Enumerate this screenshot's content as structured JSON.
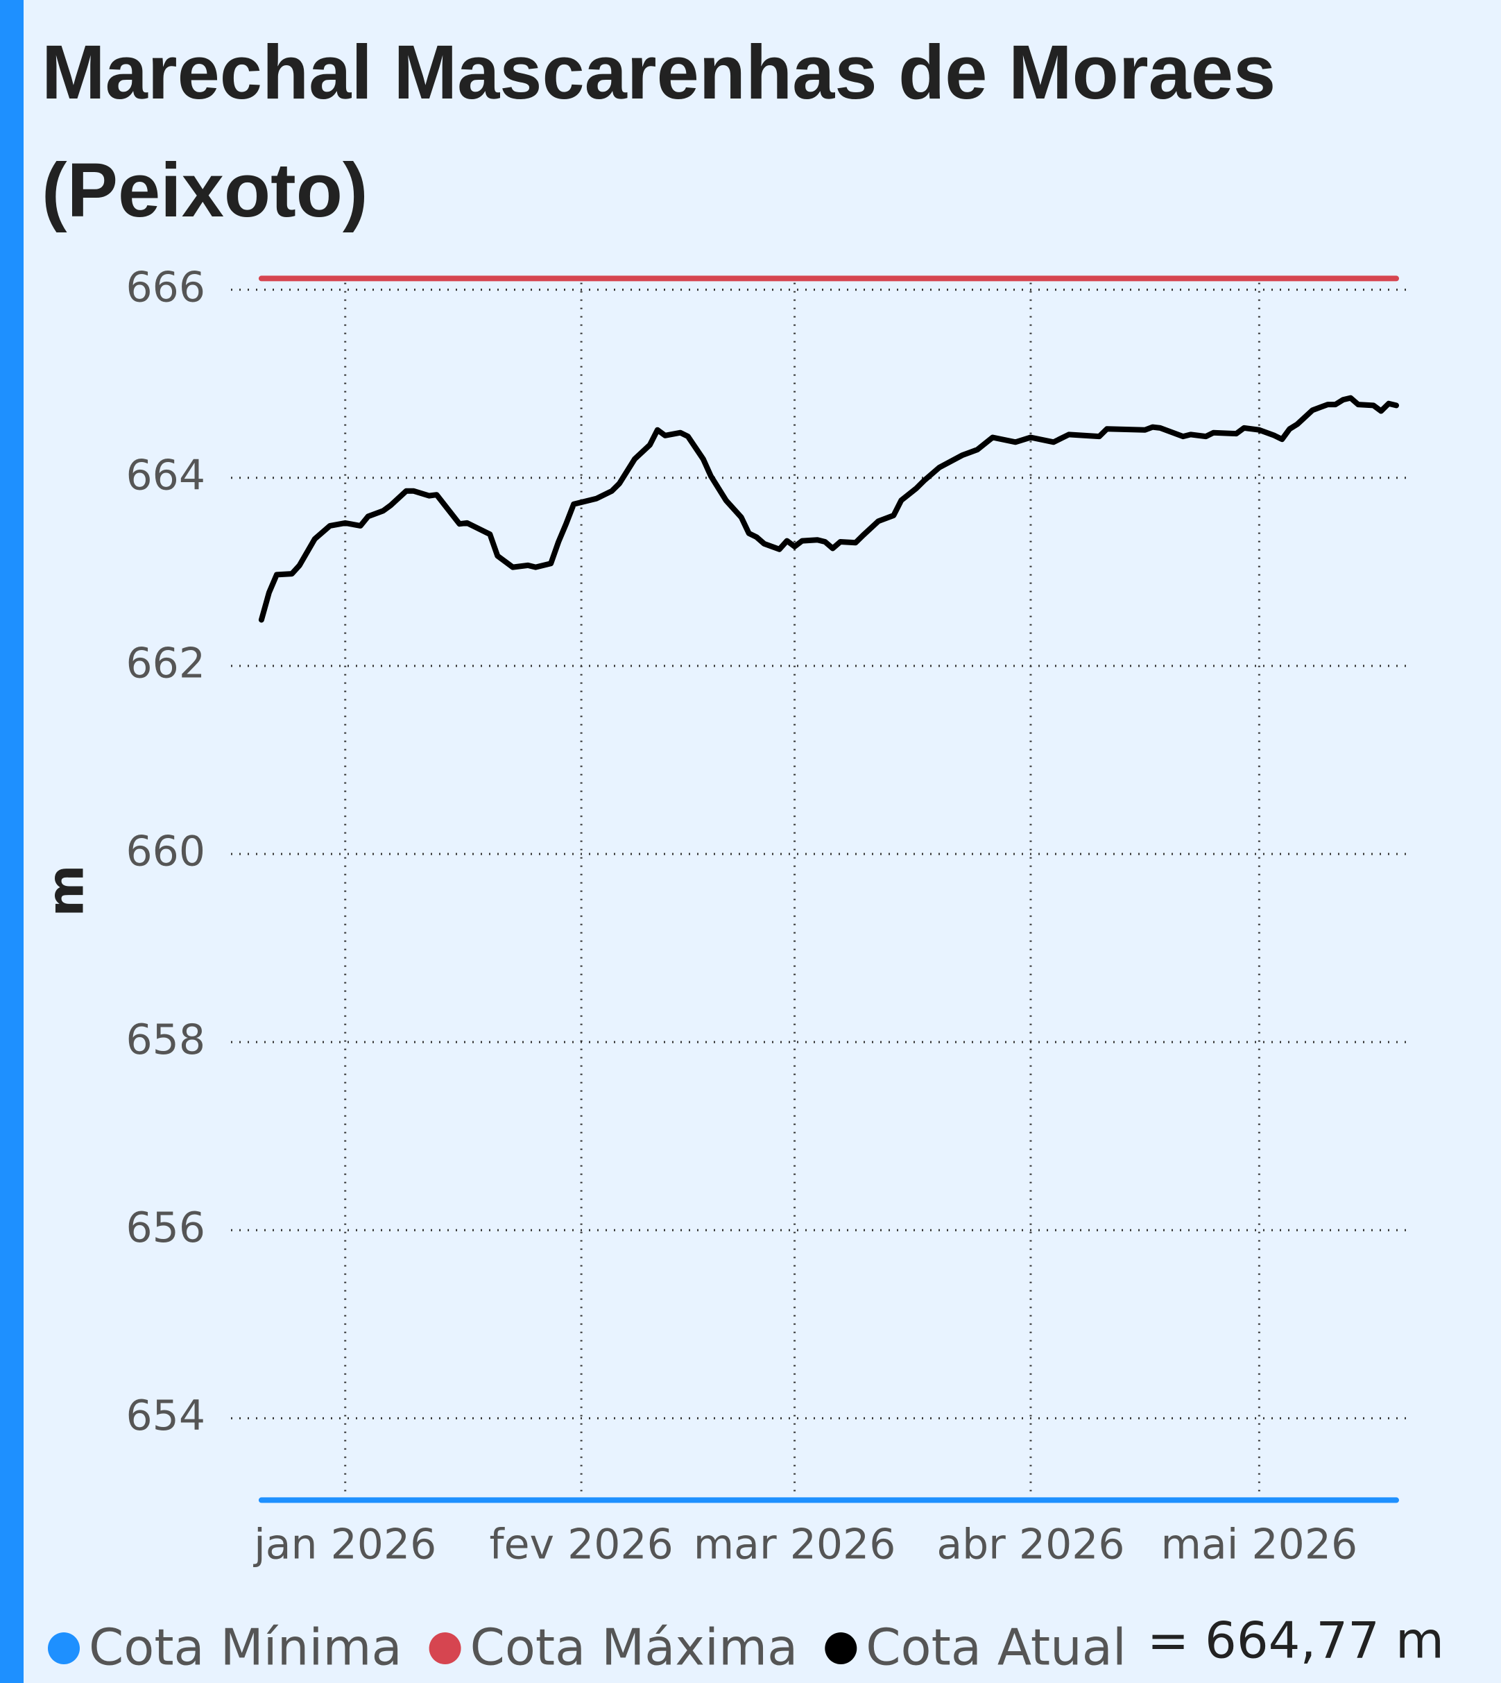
{
  "chart_data": {
    "type": "line",
    "title": "Marechal Mascarenhas de Moraes (Peixoto)",
    "y_label": "m",
    "annotation": "= 664,77 m",
    "xlim": [
      "2025-12-17",
      "2026-05-21"
    ],
    "xticks": [
      {
        "value": "2026-01-01",
        "label": "jan 2026"
      },
      {
        "value": "2026-02-01",
        "label": "fev 2026"
      },
      {
        "value": "2026-03-01",
        "label": "mar 2026"
      },
      {
        "value": "2026-04-01",
        "label": "abr 2026"
      },
      {
        "value": "2026-05-01",
        "label": "mai 2026"
      }
    ],
    "ylim": [
      653,
      666.3
    ],
    "yticks": [
      654,
      656,
      658,
      660,
      662,
      664,
      666
    ],
    "grid": true,
    "series": [
      {
        "name": "Cota Mínima",
        "color": "#1e90ff",
        "x": [
          "2025-12-21",
          "2026-05-19"
        ],
        "values": [
          653.13,
          653.13
        ]
      },
      {
        "name": "Cota Máxima",
        "color": "#d64550",
        "x": [
          "2025-12-21",
          "2026-05-19"
        ],
        "values": [
          666.12,
          666.12
        ]
      },
      {
        "name": "Cota Atual",
        "color": "#000000",
        "x": [
          "2025-12-21",
          "2025-12-22",
          "2025-12-23",
          "2025-12-25",
          "2025-12-26",
          "2025-12-28",
          "2025-12-30",
          "2026-01-01",
          "2026-01-03",
          "2026-01-04",
          "2026-01-06",
          "2026-01-07",
          "2026-01-09",
          "2026-01-10",
          "2026-01-12",
          "2026-01-13",
          "2026-01-16",
          "2026-01-17",
          "2026-01-20",
          "2026-01-21",
          "2026-01-23",
          "2026-01-25",
          "2026-01-26",
          "2026-01-28",
          "2026-01-29",
          "2026-01-30",
          "2026-01-31",
          "2026-02-03",
          "2026-02-05",
          "2026-02-06",
          "2026-02-08",
          "2026-02-10",
          "2026-02-11",
          "2026-02-12",
          "2026-02-14",
          "2026-02-15",
          "2026-02-17",
          "2026-02-18",
          "2026-02-20",
          "2026-02-22",
          "2026-02-23",
          "2026-02-24",
          "2026-02-25",
          "2026-02-27",
          "2026-02-28",
          "2026-03-01",
          "2026-03-02",
          "2026-03-04",
          "2026-03-05",
          "2026-03-06",
          "2026-03-07",
          "2026-03-09",
          "2026-03-10",
          "2026-03-12",
          "2026-03-14",
          "2026-03-15",
          "2026-03-17",
          "2026-03-18",
          "2026-03-20",
          "2026-03-23",
          "2026-03-25",
          "2026-03-27",
          "2026-03-30",
          "2026-04-01",
          "2026-04-04",
          "2026-04-06",
          "2026-04-10",
          "2026-04-11",
          "2026-04-16",
          "2026-04-17",
          "2026-04-18",
          "2026-04-21",
          "2026-04-22",
          "2026-04-24",
          "2026-04-25",
          "2026-04-28",
          "2026-04-29",
          "2026-05-01",
          "2026-05-03",
          "2026-05-04",
          "2026-05-05",
          "2026-05-06",
          "2026-05-08",
          "2026-05-10",
          "2026-05-11",
          "2026-05-12",
          "2026-05-13",
          "2026-05-14",
          "2026-05-16",
          "2026-05-17",
          "2026-05-18",
          "2026-05-19"
        ],
        "values": [
          662.49,
          662.78,
          662.97,
          662.98,
          663.07,
          663.35,
          663.49,
          663.52,
          663.49,
          663.59,
          663.65,
          663.71,
          663.86,
          663.86,
          663.81,
          663.82,
          663.51,
          663.52,
          663.4,
          663.17,
          663.05,
          663.07,
          663.05,
          663.09,
          663.32,
          663.51,
          663.72,
          663.78,
          663.86,
          663.94,
          664.2,
          664.35,
          664.51,
          664.45,
          664.48,
          664.44,
          664.2,
          664.02,
          663.76,
          663.58,
          663.41,
          663.37,
          663.3,
          663.24,
          663.33,
          663.27,
          663.33,
          663.34,
          663.32,
          663.25,
          663.32,
          663.31,
          663.39,
          663.54,
          663.6,
          663.76,
          663.89,
          663.97,
          664.11,
          664.24,
          664.3,
          664.43,
          664.38,
          664.43,
          664.38,
          664.46,
          664.44,
          664.52,
          664.51,
          664.54,
          664.53,
          664.44,
          664.46,
          664.44,
          664.48,
          664.47,
          664.53,
          664.51,
          664.45,
          664.41,
          664.52,
          664.57,
          664.72,
          664.78,
          664.78,
          664.83,
          664.85,
          664.78,
          664.77,
          664.71,
          664.79,
          664.77
        ]
      }
    ]
  }
}
